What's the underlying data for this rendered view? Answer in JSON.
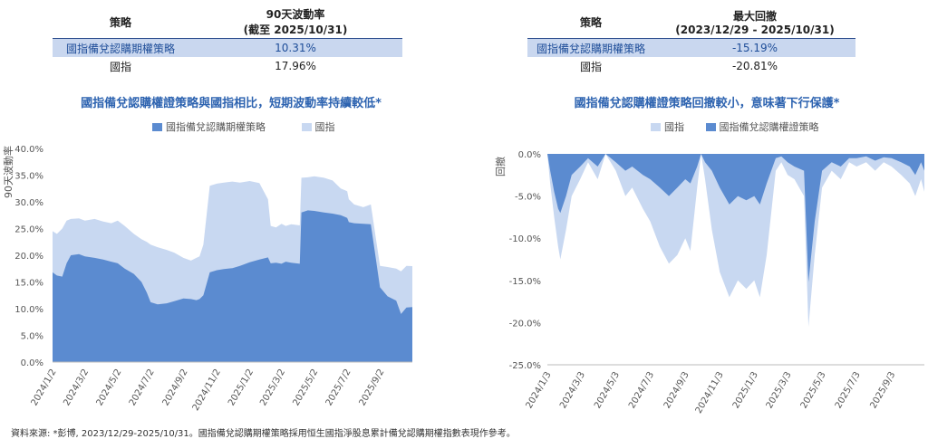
{
  "left_table": {
    "col1_header": "策略",
    "col2_header_line1": "90天波動率",
    "col2_header_line2": "(截至 2025/10/31)",
    "rows": [
      {
        "label": "國指備兌認購期權策略",
        "value": "10.31%"
      },
      {
        "label": "國指",
        "value": "17.96%"
      }
    ]
  },
  "right_table": {
    "col1_header": "策略",
    "col2_header_line1": "最大回撤",
    "col2_header_line2": "(2023/12/29 - 2025/10/31)",
    "rows": [
      {
        "label": "國指備兌認購期權策略",
        "value": "-15.19%"
      },
      {
        "label": "國指",
        "value": "-20.81%"
      }
    ]
  },
  "colors": {
    "strategy": "#5b8bd0",
    "index": "#c8d8f1",
    "title": "#2d63b0",
    "table_highlight": "#c9d7ef"
  },
  "source_note": "資料來源: *彭博, 2023/12/29-2025/10/31。國指備兌認購期權策略採用恒生國指淨股息累計備兌認購期權指數表現作參考。",
  "chart_data": [
    {
      "type": "area",
      "title": "國指備兌認購權證策略與國指相比，短期波動率持續較低*",
      "ylabel": "90天波動率",
      "xlabel": "",
      "ylim": [
        0,
        40
      ],
      "yticks": [
        "0.0%",
        "5.0%",
        "10.0%",
        "15.0%",
        "20.0%",
        "25.0%",
        "30.0%",
        "35.0%",
        "40.0%"
      ],
      "xtick_labels": [
        "2024/1/2",
        "2024/3/2",
        "2024/5/2",
        "2024/7/2",
        "2024/9/2",
        "2024/11/2",
        "2025/1/2",
        "2025/3/2",
        "2025/5/2",
        "2025/7/2",
        "2025/9/2"
      ],
      "x_end": "2025/10/31",
      "legend": [
        "國指備兌認購期權策略",
        "國指"
      ],
      "legend_position": "top",
      "grid": false,
      "series": [
        {
          "name": "國指備兌認購期權策略",
          "x": [
            "2024/1/2",
            "2024/1/10",
            "2024/1/20",
            "2024/1/28",
            "2024/2/5",
            "2024/2/20",
            "2024/3/2",
            "2024/3/20",
            "2024/4/5",
            "2024/4/20",
            "2024/5/2",
            "2024/5/15",
            "2024/6/1",
            "2024/6/15",
            "2024/6/25",
            "2024/7/2",
            "2024/7/15",
            "2024/8/1",
            "2024/8/15",
            "2024/9/1",
            "2024/9/15",
            "2024/9/25",
            "2024/10/1",
            "2024/10/8",
            "2024/10/20",
            "2024/11/2",
            "2024/11/15",
            "2024/12/1",
            "2024/12/15",
            "2025/1/2",
            "2025/1/20",
            "2025/2/5",
            "2025/2/10",
            "2025/2/20",
            "2025/3/2",
            "2025/3/10",
            "2025/3/20",
            "2025/4/5",
            "2025/4/8",
            "2025/4/20",
            "2025/5/2",
            "2025/5/20",
            "2025/6/5",
            "2025/6/20",
            "2025/7/2",
            "2025/7/5",
            "2025/7/15",
            "2025/8/1",
            "2025/8/15",
            "2025/9/1",
            "2025/9/15",
            "2025/10/1",
            "2025/10/10",
            "2025/10/20",
            "2025/10/31"
          ],
          "values": [
            16.8,
            16.2,
            16.0,
            18.5,
            20.0,
            20.2,
            19.8,
            19.5,
            19.2,
            18.8,
            18.5,
            17.5,
            16.5,
            15.0,
            13.0,
            11.2,
            10.8,
            11.0,
            11.4,
            11.9,
            11.8,
            11.6,
            11.8,
            12.5,
            16.8,
            17.2,
            17.4,
            17.6,
            18.0,
            18.7,
            19.2,
            19.6,
            18.5,
            18.6,
            18.4,
            18.8,
            18.6,
            18.4,
            28.0,
            28.4,
            28.3,
            28.0,
            27.8,
            27.5,
            27.0,
            26.2,
            26.0,
            25.9,
            25.8,
            14.0,
            12.3,
            11.5,
            9.0,
            10.2,
            10.3
          ]
        },
        {
          "name": "國指",
          "x": [
            "2024/1/2",
            "2024/1/10",
            "2024/1/20",
            "2024/1/28",
            "2024/2/5",
            "2024/2/20",
            "2024/3/2",
            "2024/3/20",
            "2024/4/5",
            "2024/4/20",
            "2024/5/2",
            "2024/5/15",
            "2024/6/1",
            "2024/6/15",
            "2024/6/25",
            "2024/7/2",
            "2024/7/15",
            "2024/8/1",
            "2024/8/15",
            "2024/9/1",
            "2024/9/15",
            "2024/9/25",
            "2024/10/1",
            "2024/10/8",
            "2024/10/20",
            "2024/11/2",
            "2024/11/15",
            "2024/12/1",
            "2024/12/15",
            "2025/1/2",
            "2025/1/20",
            "2025/2/5",
            "2025/2/10",
            "2025/2/20",
            "2025/3/2",
            "2025/3/10",
            "2025/3/20",
            "2025/4/5",
            "2025/4/8",
            "2025/4/20",
            "2025/5/2",
            "2025/5/20",
            "2025/6/5",
            "2025/6/20",
            "2025/7/2",
            "2025/7/5",
            "2025/7/15",
            "2025/8/1",
            "2025/8/15",
            "2025/9/1",
            "2025/9/15",
            "2025/10/1",
            "2025/10/10",
            "2025/10/20",
            "2025/10/31"
          ],
          "values": [
            24.5,
            24.0,
            25.0,
            26.5,
            26.8,
            26.9,
            26.5,
            26.8,
            26.3,
            26.0,
            26.5,
            25.5,
            24.0,
            23.0,
            22.5,
            22.0,
            21.5,
            21.0,
            20.5,
            19.5,
            19.0,
            19.5,
            19.8,
            22.0,
            33.0,
            33.4,
            33.6,
            33.8,
            33.6,
            33.9,
            33.5,
            30.5,
            25.5,
            25.2,
            25.9,
            25.5,
            25.8,
            25.6,
            34.5,
            34.6,
            34.8,
            34.5,
            34.0,
            32.5,
            32.0,
            30.5,
            29.5,
            29.0,
            29.5,
            18.0,
            17.8,
            17.5,
            17.0,
            18.0,
            17.96
          ]
        }
      ]
    },
    {
      "type": "area",
      "title": "國指備兌認購權證策略回撤較小，意味著下行保護*",
      "ylabel": "回撤",
      "xlabel": "",
      "ylim": [
        -25,
        0
      ],
      "yticks": [
        "0.0%",
        "-5.0%",
        "-10.0%",
        "-15.0%",
        "-20.0%",
        "-25.0%"
      ],
      "xtick_labels": [
        "2024/1/3",
        "2024/3/3",
        "2024/5/3",
        "2024/7/3",
        "2024/9/3",
        "2024/11/3",
        "2025/1/3",
        "2025/3/3",
        "2025/5/3",
        "2025/7/3",
        "2025/9/3"
      ],
      "x_end": "2025/10/31",
      "legend": [
        "國指",
        "國指備兌認購權證策略"
      ],
      "legend_position": "top",
      "grid": false,
      "series": [
        {
          "name": "國指",
          "x": [
            "2024/1/3",
            "2024/1/8",
            "2024/1/15",
            "2024/1/22",
            "2024/1/26",
            "2024/2/5",
            "2024/2/15",
            "2024/3/1",
            "2024/3/15",
            "2024/4/1",
            "2024/4/15",
            "2024/5/3",
            "2024/5/20",
            "2024/6/1",
            "2024/6/20",
            "2024/7/3",
            "2024/7/20",
            "2024/8/5",
            "2024/8/20",
            "2024/9/3",
            "2024/9/12",
            "2024/9/24",
            "2024/10/1",
            "2024/10/8",
            "2024/10/20",
            "2024/11/3",
            "2024/11/20",
            "2024/12/5",
            "2024/12/20",
            "2025/1/3",
            "2025/1/13",
            "2025/1/25",
            "2025/2/10",
            "2025/2/20",
            "2025/3/3",
            "2025/3/15",
            "2025/4/1",
            "2025/4/9",
            "2025/4/20",
            "2025/5/3",
            "2025/5/20",
            "2025/6/5",
            "2025/6/20",
            "2025/7/3",
            "2025/7/20",
            "2025/8/5",
            "2025/8/20",
            "2025/9/3",
            "2025/9/20",
            "2025/10/5",
            "2025/10/15",
            "2025/10/25",
            "2025/10/31"
          ],
          "values": [
            0,
            -3.5,
            -7.5,
            -11.0,
            -12.5,
            -9.0,
            -5.0,
            -3.0,
            -1.0,
            -3.0,
            0,
            -2.0,
            -5.0,
            -4.0,
            -6.5,
            -8.0,
            -11.0,
            -13.0,
            -12.0,
            -10.0,
            -11.5,
            -4.0,
            0,
            -3.0,
            -9.0,
            -14.0,
            -17.0,
            -15.0,
            -16.0,
            -15.0,
            -17.0,
            -12.0,
            -2.0,
            -1.0,
            -2.5,
            -3.0,
            -5.0,
            -20.5,
            -12.0,
            -4.0,
            -2.0,
            -3.0,
            -1.0,
            -1.5,
            -1.0,
            -2.0,
            -1.0,
            -1.5,
            -2.5,
            -3.5,
            -5.0,
            -3.0,
            -4.5
          ]
        },
        {
          "name": "國指備兌認購權證策略",
          "x": [
            "2024/1/3",
            "2024/1/8",
            "2024/1/15",
            "2024/1/22",
            "2024/1/26",
            "2024/2/5",
            "2024/2/15",
            "2024/3/1",
            "2024/3/15",
            "2024/4/1",
            "2024/4/15",
            "2024/5/3",
            "2024/5/20",
            "2024/6/1",
            "2024/6/20",
            "2024/7/3",
            "2024/7/20",
            "2024/8/5",
            "2024/8/20",
            "2024/9/3",
            "2024/9/12",
            "2024/9/24",
            "2024/10/1",
            "2024/10/8",
            "2024/10/20",
            "2024/11/3",
            "2024/11/20",
            "2024/12/5",
            "2024/12/20",
            "2025/1/3",
            "2025/1/13",
            "2025/1/25",
            "2025/2/10",
            "2025/2/20",
            "2025/3/3",
            "2025/3/15",
            "2025/4/1",
            "2025/4/9",
            "2025/4/20",
            "2025/5/3",
            "2025/5/20",
            "2025/6/5",
            "2025/6/20",
            "2025/7/3",
            "2025/7/20",
            "2025/8/5",
            "2025/8/20",
            "2025/9/3",
            "2025/9/20",
            "2025/10/5",
            "2025/10/15",
            "2025/10/25",
            "2025/10/31"
          ],
          "values": [
            0,
            -2.0,
            -4.5,
            -6.5,
            -7.0,
            -5.0,
            -2.5,
            -1.5,
            -0.5,
            -1.5,
            0,
            -1.0,
            -2.0,
            -1.5,
            -2.5,
            -3.0,
            -4.0,
            -5.0,
            -4.0,
            -3.0,
            -3.5,
            -1.5,
            0,
            -1.0,
            -2.0,
            -4.0,
            -6.0,
            -5.0,
            -5.5,
            -5.0,
            -6.0,
            -3.5,
            -0.5,
            -0.3,
            -1.0,
            -1.5,
            -2.0,
            -15.19,
            -8.0,
            -2.0,
            -1.0,
            -1.5,
            -0.5,
            -0.5,
            -0.3,
            -0.8,
            -0.4,
            -0.5,
            -1.0,
            -1.5,
            -2.5,
            -1.0,
            -2.0
          ]
        }
      ]
    }
  ]
}
